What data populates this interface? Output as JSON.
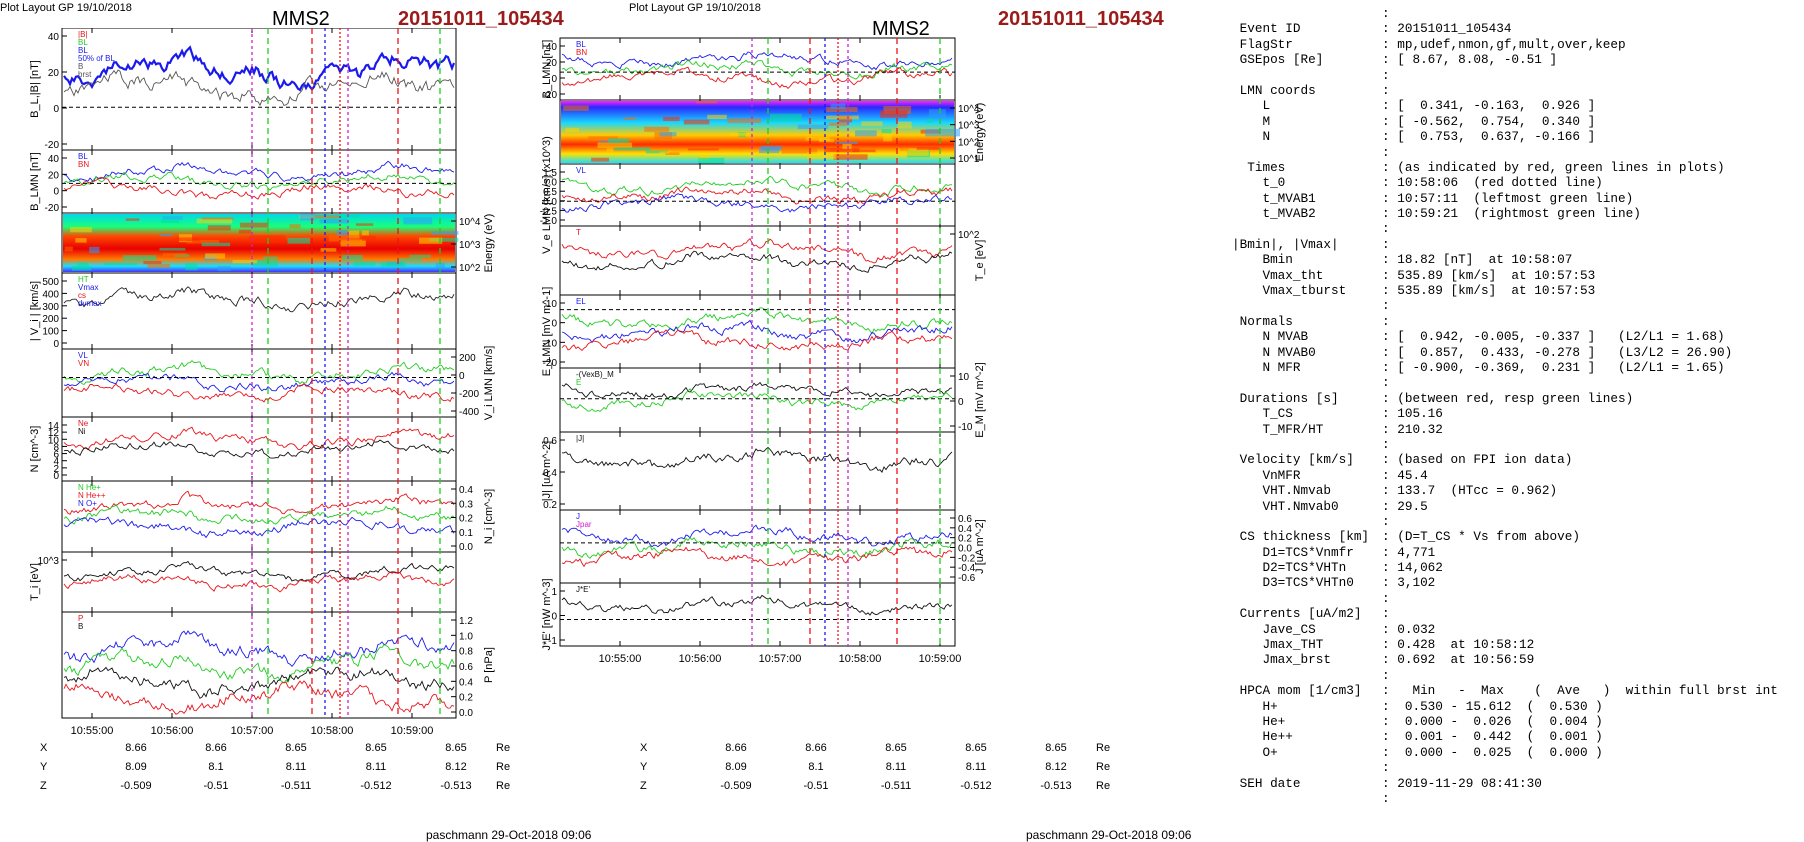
{
  "header": {
    "plot_layout": "Plot Layout GP 19/10/2018",
    "spacecraft": "MMS2",
    "event": "20151011_105434",
    "footer": "paschmann 29-Oct-2018 09:06"
  },
  "time_ticks": [
    "10:55:00",
    "10:56:00",
    "10:57:00",
    "10:58:00",
    "10:59:00"
  ],
  "coords": {
    "rows": [
      {
        "label": "X",
        "values": [
          "8.66",
          "8.66",
          "8.65",
          "8.65",
          "8.65"
        ],
        "unit": "Re"
      },
      {
        "label": "Y",
        "values": [
          "8.09",
          "8.1",
          "8.11",
          "8.11",
          "8.12"
        ],
        "unit": "Re"
      },
      {
        "label": "Z",
        "values": [
          "-0.509",
          "-0.51",
          "-0.511",
          "-0.512",
          "-0.513"
        ],
        "unit": "Re"
      }
    ]
  },
  "chart_data": [
    {
      "type": "line",
      "figure": "left",
      "panels": [
        {
          "ylabel": "B_L,|B| [nT]",
          "yticks_left": [
            "40",
            "20",
            "0",
            "-20"
          ],
          "legend": [
            "|B|",
            "BL",
            "BL",
            "50% of BL",
            "B",
            "brst"
          ]
        },
        {
          "ylabel": "B_LMN [nT]",
          "yticks_left": [
            "40",
            "20",
            "0",
            "-20"
          ],
          "legend": [
            "BL",
            "BN"
          ]
        },
        {
          "type": "heatmap",
          "ylabel_right": "Energy (eV)",
          "yticks_right": [
            "10^4",
            "10^3",
            "10^2"
          ]
        },
        {
          "ylabel": "| V_i | [km/s]",
          "yticks_left": [
            "500",
            "400",
            "300",
            "200",
            "100",
            "0"
          ],
          "legend": [
            "HT",
            "Vmax",
            "cs",
            "dvmax"
          ]
        },
        {
          "ylabel_right": "V_i LMN [km/s]",
          "yticks_right": [
            "200",
            "0",
            "-200",
            "-400"
          ],
          "legend": [
            "VL",
            "VN"
          ]
        },
        {
          "ylabel": "N [cm^-3]",
          "yticks_left": [
            "14",
            "12",
            "10",
            "8",
            "6",
            "4",
            "2",
            "0"
          ],
          "legend": [
            "Ne",
            "Ni"
          ]
        },
        {
          "ylabel_right": "N_i [cm^-3]",
          "yticks_right": [
            "0.4",
            "0.3",
            "0.2",
            "0.1",
            "0.0"
          ],
          "legend": [
            "N He+",
            "N He++",
            "N O+"
          ]
        },
        {
          "ylabel": "T_i [eV]",
          "yticks_left": [
            "10^3"
          ]
        },
        {
          "ylabel_right": "P [nPa]",
          "yticks_right": [
            "1.2",
            "1.0",
            "0.8",
            "0.6",
            "0.4",
            "0.2",
            "0.0"
          ],
          "legend": [
            "P",
            "B"
          ]
        }
      ]
    },
    {
      "type": "line",
      "figure": "middle",
      "panels": [
        {
          "ylabel": "B_LMN [nT]",
          "yticks_left": [
            "40",
            "20",
            "0",
            "-20"
          ],
          "legend": [
            "BL",
            "BN"
          ]
        },
        {
          "type": "heatmap",
          "ylabel_right": "Energy (eV)",
          "yticks_right": [
            "10^4",
            "10^3",
            "10^2",
            "10^1"
          ]
        },
        {
          "ylabel": "V_e LMN [km/s] (x10^3)",
          "yticks_left": [
            "1.5",
            "1.0",
            "0.5",
            "0.0",
            "-0.5",
            "-1.0"
          ],
          "legend": [
            "VL"
          ]
        },
        {
          "ylabel_right": "T_e [eV]",
          "yticks_right": [
            "10^2"
          ],
          "legend": [
            "T"
          ]
        },
        {
          "ylabel": "E_LMN [mV m^-1]",
          "yticks_left": [
            "10",
            "0",
            "-10",
            "-20"
          ],
          "legend": [
            "EL"
          ]
        },
        {
          "ylabel_right": "E_M [mV m^-2]",
          "yticks_right": [
            "10",
            "0",
            "-10"
          ],
          "legend": [
            "-(VexB)_M",
            "E"
          ]
        },
        {
          "ylabel": "|J| [uA m^-2]",
          "yticks_left": [
            "0.6",
            "0.4",
            "0.2"
          ],
          "legend": [
            "|J|"
          ]
        },
        {
          "ylabel_right": "J [uA m^-2]",
          "yticks_right": [
            "0.6",
            "0.4",
            "0.2",
            "0.0",
            "-0.2",
            "-0.4",
            "-0.6"
          ],
          "legend": [
            "J",
            "Jpar"
          ]
        },
        {
          "ylabel": "J*E' [nW m^-3]",
          "yticks_left": [
            "1",
            "0",
            "-1"
          ],
          "legend": [
            "J*E'"
          ]
        }
      ]
    }
  ],
  "info": {
    "lines": [
      {
        "l": "",
        "v": ":"
      },
      {
        "l": " Event ID",
        "v": ": 20151011_105434"
      },
      {
        "l": " FlagStr",
        "v": ": mp,udef,nmon,gf,mult,over,keep"
      },
      {
        "l": " GSEpos [Re]",
        "v": ": [ 8.67, 8.08, -0.51 ]"
      },
      {
        "l": "",
        "v": ":"
      },
      {
        "l": " LMN coords",
        "v": ":"
      },
      {
        "l": "    L",
        "v": ": [  0.341, -0.163,  0.926 ]"
      },
      {
        "l": "    M",
        "v": ": [ -0.562,  0.754,  0.340 ]"
      },
      {
        "l": "    N",
        "v": ": [  0.753,  0.637, -0.166 ]"
      },
      {
        "l": "",
        "v": ":"
      },
      {
        "l": "  Times",
        "v": ": (as indicated by red, green lines in plots)"
      },
      {
        "l": "    t_0",
        "v": ": 10:58:06  (red dotted line)"
      },
      {
        "l": "    t_MVAB1",
        "v": ": 10:57:11  (leftmost green line)"
      },
      {
        "l": "    t_MVAB2",
        "v": ": 10:59:21  (rightmost green line)"
      },
      {
        "l": "",
        "v": ":"
      },
      {
        "l": "|Bmin|, |Vmax|",
        "v": ":"
      },
      {
        "l": "    Bmin",
        "v": ": 18.82 [nT]  at 10:58:07"
      },
      {
        "l": "    Vmax_tht",
        "v": ": 535.89 [km/s]  at 10:57:53"
      },
      {
        "l": "    Vmax_tburst",
        "v": ": 535.89 [km/s]  at 10:57:53"
      },
      {
        "l": "",
        "v": ":"
      },
      {
        "l": " Normals",
        "v": ":"
      },
      {
        "l": "    N MVAB",
        "v": ": [  0.942, -0.005, -0.337 ]   (L2/L1 = 1.68)"
      },
      {
        "l": "    N MVAB0",
        "v": ": [  0.857,  0.433, -0.278 ]   (L3/L2 = 26.90)"
      },
      {
        "l": "    N MFR",
        "v": ": [ -0.900, -0.369,  0.231 ]   (L2/L1 = 1.65)"
      },
      {
        "l": "",
        "v": ":"
      },
      {
        "l": " Durations [s]",
        "v": ": (between red, resp green lines)"
      },
      {
        "l": "    T_CS",
        "v": ": 105.16"
      },
      {
        "l": "    T_MFR/HT",
        "v": ": 210.32"
      },
      {
        "l": "",
        "v": ":"
      },
      {
        "l": " Velocity [km/s]",
        "v": ": (based on FPI ion data)"
      },
      {
        "l": "    VnMFR",
        "v": ": 45.4"
      },
      {
        "l": "    VHT.Nmvab",
        "v": ": 133.7  (HTcc = 0.962)"
      },
      {
        "l": "    VHT.Nmvab0",
        "v": ": 29.5"
      },
      {
        "l": "",
        "v": ":"
      },
      {
        "l": " CS thickness [km]",
        "v": ": (D=T_CS * Vs from above)"
      },
      {
        "l": "    D1=TCS*Vnmfr",
        "v": ": 4,771"
      },
      {
        "l": "    D2=TCS*VHTn",
        "v": ": 14,062"
      },
      {
        "l": "    D3=TCS*VHTn0",
        "v": ": 3,102"
      },
      {
        "l": "",
        "v": ":"
      },
      {
        "l": " Currents [uA/m2]",
        "v": ":"
      },
      {
        "l": "    Jave_CS",
        "v": ": 0.032"
      },
      {
        "l": "    Jmax_THT",
        "v": ": 0.428  at 10:58:12"
      },
      {
        "l": "    Jmax_brst",
        "v": ": 0.692  at 10:56:59"
      },
      {
        "l": "",
        "v": ":"
      },
      {
        "l": " HPCA mom [1/cm3]",
        "v": ":   Min   -  Max    (  Ave   )  within full brst int"
      },
      {
        "l": "    H+",
        "v": ":  0.530 - 15.612  (  0.530 )"
      },
      {
        "l": "    He+",
        "v": ":  0.000 -  0.026  (  0.004 )"
      },
      {
        "l": "    He++",
        "v": ":  0.001 -  0.442  (  0.001 )"
      },
      {
        "l": "    O+",
        "v": ":  0.000 -  0.025  (  0.000 )"
      },
      {
        "l": "",
        "v": ":"
      },
      {
        "l": " SEH date",
        "v": ": 2019-11-29 08:41:30"
      },
      {
        "l": "",
        "v": ":"
      }
    ]
  },
  "colors": {
    "event": "#9b1b1b",
    "red": "#e8141b",
    "green": "#22cc22",
    "blue": "#1a1aee",
    "magenta": "#cc22cc",
    "black": "#111111"
  }
}
